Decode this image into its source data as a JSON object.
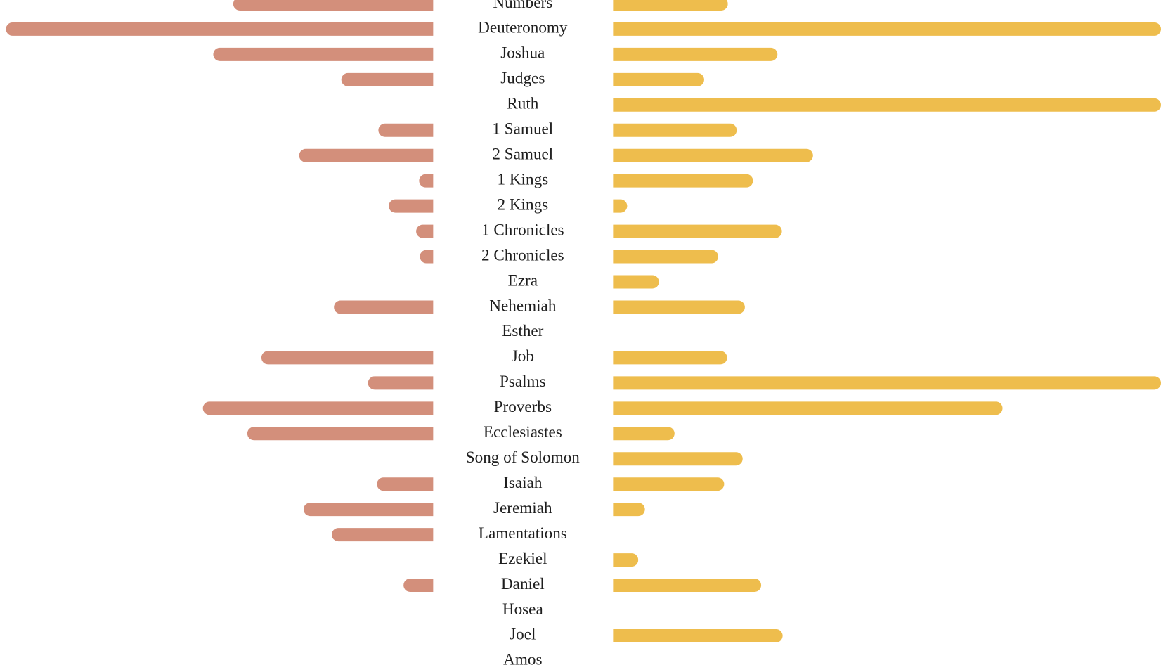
{
  "chart_data": {
    "type": "butterfly",
    "categories": [
      "Numbers",
      "Deuteronomy",
      "Joshua",
      "Judges",
      "Ruth",
      "1 Samuel",
      "2 Samuel",
      "1 Kings",
      "2 Kings",
      "1 Chronicles",
      "2 Chronicles",
      "Ezra",
      "Nehemiah",
      "Esther",
      "Job",
      "Psalms",
      "Proverbs",
      "Ecclesiastes",
      "Song of Solomon",
      "Isaiah",
      "Jeremiah",
      "Lamentations",
      "Ezekiel",
      "Daniel",
      "Hosea",
      "Joel",
      "Amos"
    ],
    "series": [
      {
        "color": "#d38f7b",
        "values": [
          270,
          577,
          297,
          124,
          0,
          74,
          181,
          19,
          60,
          23,
          18,
          0,
          134,
          0,
          232,
          88,
          311,
          251,
          0,
          76,
          175,
          137,
          0,
          40,
          0,
          0,
          0
        ]
      },
      {
        "color": "#eebd4d",
        "values": [
          155,
          740,
          222,
          123,
          740,
          167,
          270,
          189,
          19,
          228,
          142,
          62,
          178,
          0,
          154,
          740,
          526,
          83,
          175,
          150,
          43,
          0,
          34,
          200,
          0,
          229,
          0
        ]
      }
    ]
  }
}
